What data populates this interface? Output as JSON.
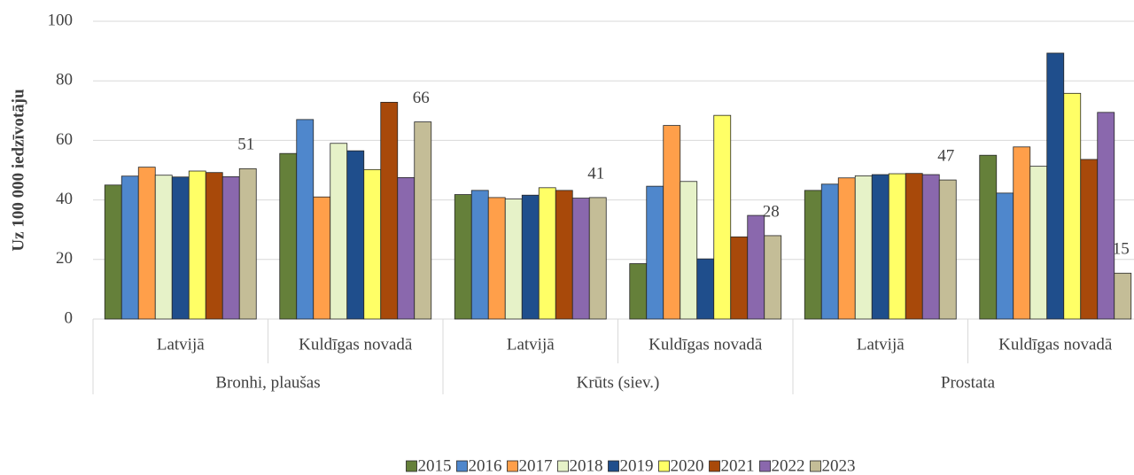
{
  "chart_data": {
    "type": "bar",
    "y_label": "Uz 100 000 iedzīvotāju",
    "groups": [
      "Bronhi, plaušas",
      "Krūts (siev.)",
      "Prostata"
    ],
    "categories": [
      "Latvijā",
      "Kuldīgas novadā",
      "Latvijā",
      "Kuldīgas novadā",
      "Latvijā",
      "Kuldīgas novadā"
    ],
    "ylim": [
      0,
      100
    ],
    "yticks": [
      0,
      20,
      40,
      60,
      80,
      100
    ],
    "grid": true,
    "legend": "bottom",
    "series": [
      {
        "name": "2015",
        "color": "#65803a",
        "values": [
          45,
          55.6,
          41.8,
          18.6,
          43.2,
          55
        ]
      },
      {
        "name": "2016",
        "color": "#4f87cc",
        "values": [
          48,
          67,
          43.2,
          44.6,
          45.3,
          42.3
        ]
      },
      {
        "name": "2017",
        "color": "#ff9f4a",
        "values": [
          51,
          41,
          40.8,
          65,
          47.4,
          57.8
        ]
      },
      {
        "name": "2018",
        "color": "#e6f2c8",
        "values": [
          48.3,
          59,
          40.3,
          46.2,
          48.1,
          51.3
        ]
      },
      {
        "name": "2019",
        "color": "#1f4e8c",
        "values": [
          47.7,
          56.5,
          41.6,
          20.2,
          48.5,
          89.3
        ]
      },
      {
        "name": "2020",
        "color": "#ffff66",
        "values": [
          49.7,
          50.2,
          44.1,
          68.4,
          48.8,
          75.8
        ]
      },
      {
        "name": "2021",
        "color": "#a8490a",
        "values": [
          49.2,
          72.8,
          43.2,
          27.6,
          48.9,
          53.6
        ]
      },
      {
        "name": "2022",
        "color": "#8a68ad",
        "values": [
          47.8,
          47.5,
          40.6,
          34.8,
          48.5,
          69.4
        ]
      },
      {
        "name": "2023",
        "color": "#c4bd97",
        "values": [
          50.5,
          66.2,
          40.8,
          28,
          46.7,
          15.4
        ],
        "value_labels": [
          "51",
          "66",
          "41",
          "28",
          "47",
          "15"
        ]
      }
    ]
  }
}
